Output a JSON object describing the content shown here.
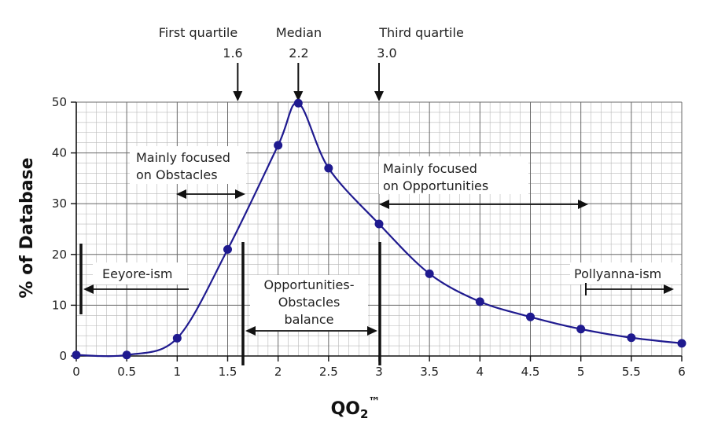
{
  "chart_data": {
    "type": "line",
    "title": "",
    "xlabel": "QO",
    "xlabel_sub": "2",
    "xlabel_sup": "™",
    "ylabel": "% of Database",
    "xlim": [
      0,
      6
    ],
    "ylim": [
      0,
      50
    ],
    "xticks": [
      "0",
      "0.5",
      "1",
      "1.5",
      "2",
      "2.5",
      "3",
      "3.5",
      "4",
      "4.5",
      "5",
      "5.5",
      "6"
    ],
    "yticks": [
      "0",
      "10",
      "20",
      "30",
      "40",
      "50"
    ],
    "grid": true,
    "line_color": "#1f1a8f",
    "series": [
      {
        "x": [
          0,
          0.5,
          1,
          1.5,
          2,
          2.2,
          2.5,
          3,
          3.5,
          4,
          4.5,
          5,
          5.5,
          6
        ],
        "values": [
          0.2,
          0.2,
          3.5,
          21,
          41.5,
          49.8,
          37,
          26,
          16.2,
          10.7,
          7.7,
          5.3,
          3.6,
          2.5
        ]
      }
    ],
    "quartiles": [
      {
        "label": "First quartile",
        "value_label": "1.6",
        "x": 1.6
      },
      {
        "label": "Median",
        "value_label": "2.2",
        "x": 2.2
      },
      {
        "label": "Third quartile",
        "value_label": "3.0",
        "x": 3.0
      }
    ],
    "annotations": {
      "obstacles": [
        "Mainly focused",
        "on Obstacles"
      ],
      "opportunities": [
        "Mainly focused",
        "on Opportunities"
      ],
      "eeyore": "Eeyore-ism",
      "balance": [
        "Opportunities-",
        "Obstacles",
        "balance"
      ],
      "pollyanna": "Pollyanna-ism"
    }
  }
}
